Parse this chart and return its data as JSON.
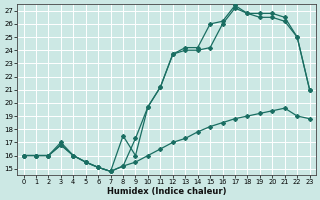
{
  "xlabel": "Humidex (Indice chaleur)",
  "bg_color": "#cce8e4",
  "grid_color": "#ffffff",
  "line_color": "#1a6e62",
  "xlim": [
    -0.5,
    23.5
  ],
  "ylim": [
    14.5,
    27.5
  ],
  "xticks": [
    0,
    1,
    2,
    3,
    4,
    5,
    6,
    7,
    8,
    9,
    10,
    11,
    12,
    13,
    14,
    15,
    16,
    17,
    18,
    19,
    20,
    21,
    22,
    23
  ],
  "yticks": [
    15,
    16,
    17,
    18,
    19,
    20,
    21,
    22,
    23,
    24,
    25,
    26,
    27
  ],
  "line_bottom": {
    "x": [
      0,
      1,
      2,
      3,
      4,
      5,
      6,
      7,
      8,
      9,
      10,
      11,
      12,
      13,
      14,
      15,
      16,
      17,
      18,
      19,
      20,
      21,
      22,
      23
    ],
    "y": [
      16,
      16,
      16,
      16.8,
      16,
      15.5,
      15.1,
      14.8,
      15.2,
      15.5,
      16,
      16.5,
      17,
      17.3,
      17.8,
      18.2,
      18.5,
      18.8,
      19,
      19.2,
      19.4,
      19.6,
      19,
      18.8
    ]
  },
  "line_mid": {
    "x": [
      0,
      1,
      2,
      3,
      4,
      5,
      6,
      7,
      8,
      9,
      10,
      11,
      12,
      13,
      14,
      15,
      16,
      17,
      18,
      19,
      20,
      21,
      22,
      23
    ],
    "y": [
      16,
      16,
      16,
      16.8,
      16,
      15.5,
      15.1,
      14.8,
      15.2,
      17.3,
      19.7,
      21.2,
      23.7,
      24,
      24,
      24.2,
      26,
      27.2,
      26.8,
      26.5,
      26.5,
      26.2,
      25,
      21
    ]
  },
  "line_top": {
    "x": [
      0,
      1,
      2,
      3,
      4,
      5,
      6,
      7,
      8,
      9,
      10,
      11,
      12,
      13,
      14,
      15,
      16,
      17,
      18,
      19,
      20,
      21,
      22,
      23
    ],
    "y": [
      16,
      16,
      16,
      17,
      16,
      15.5,
      15.1,
      14.8,
      17.5,
      16,
      19.7,
      21.2,
      23.7,
      24.2,
      24.2,
      26,
      26.2,
      27.4,
      26.8,
      26.8,
      26.8,
      26.5,
      25,
      21
    ]
  }
}
